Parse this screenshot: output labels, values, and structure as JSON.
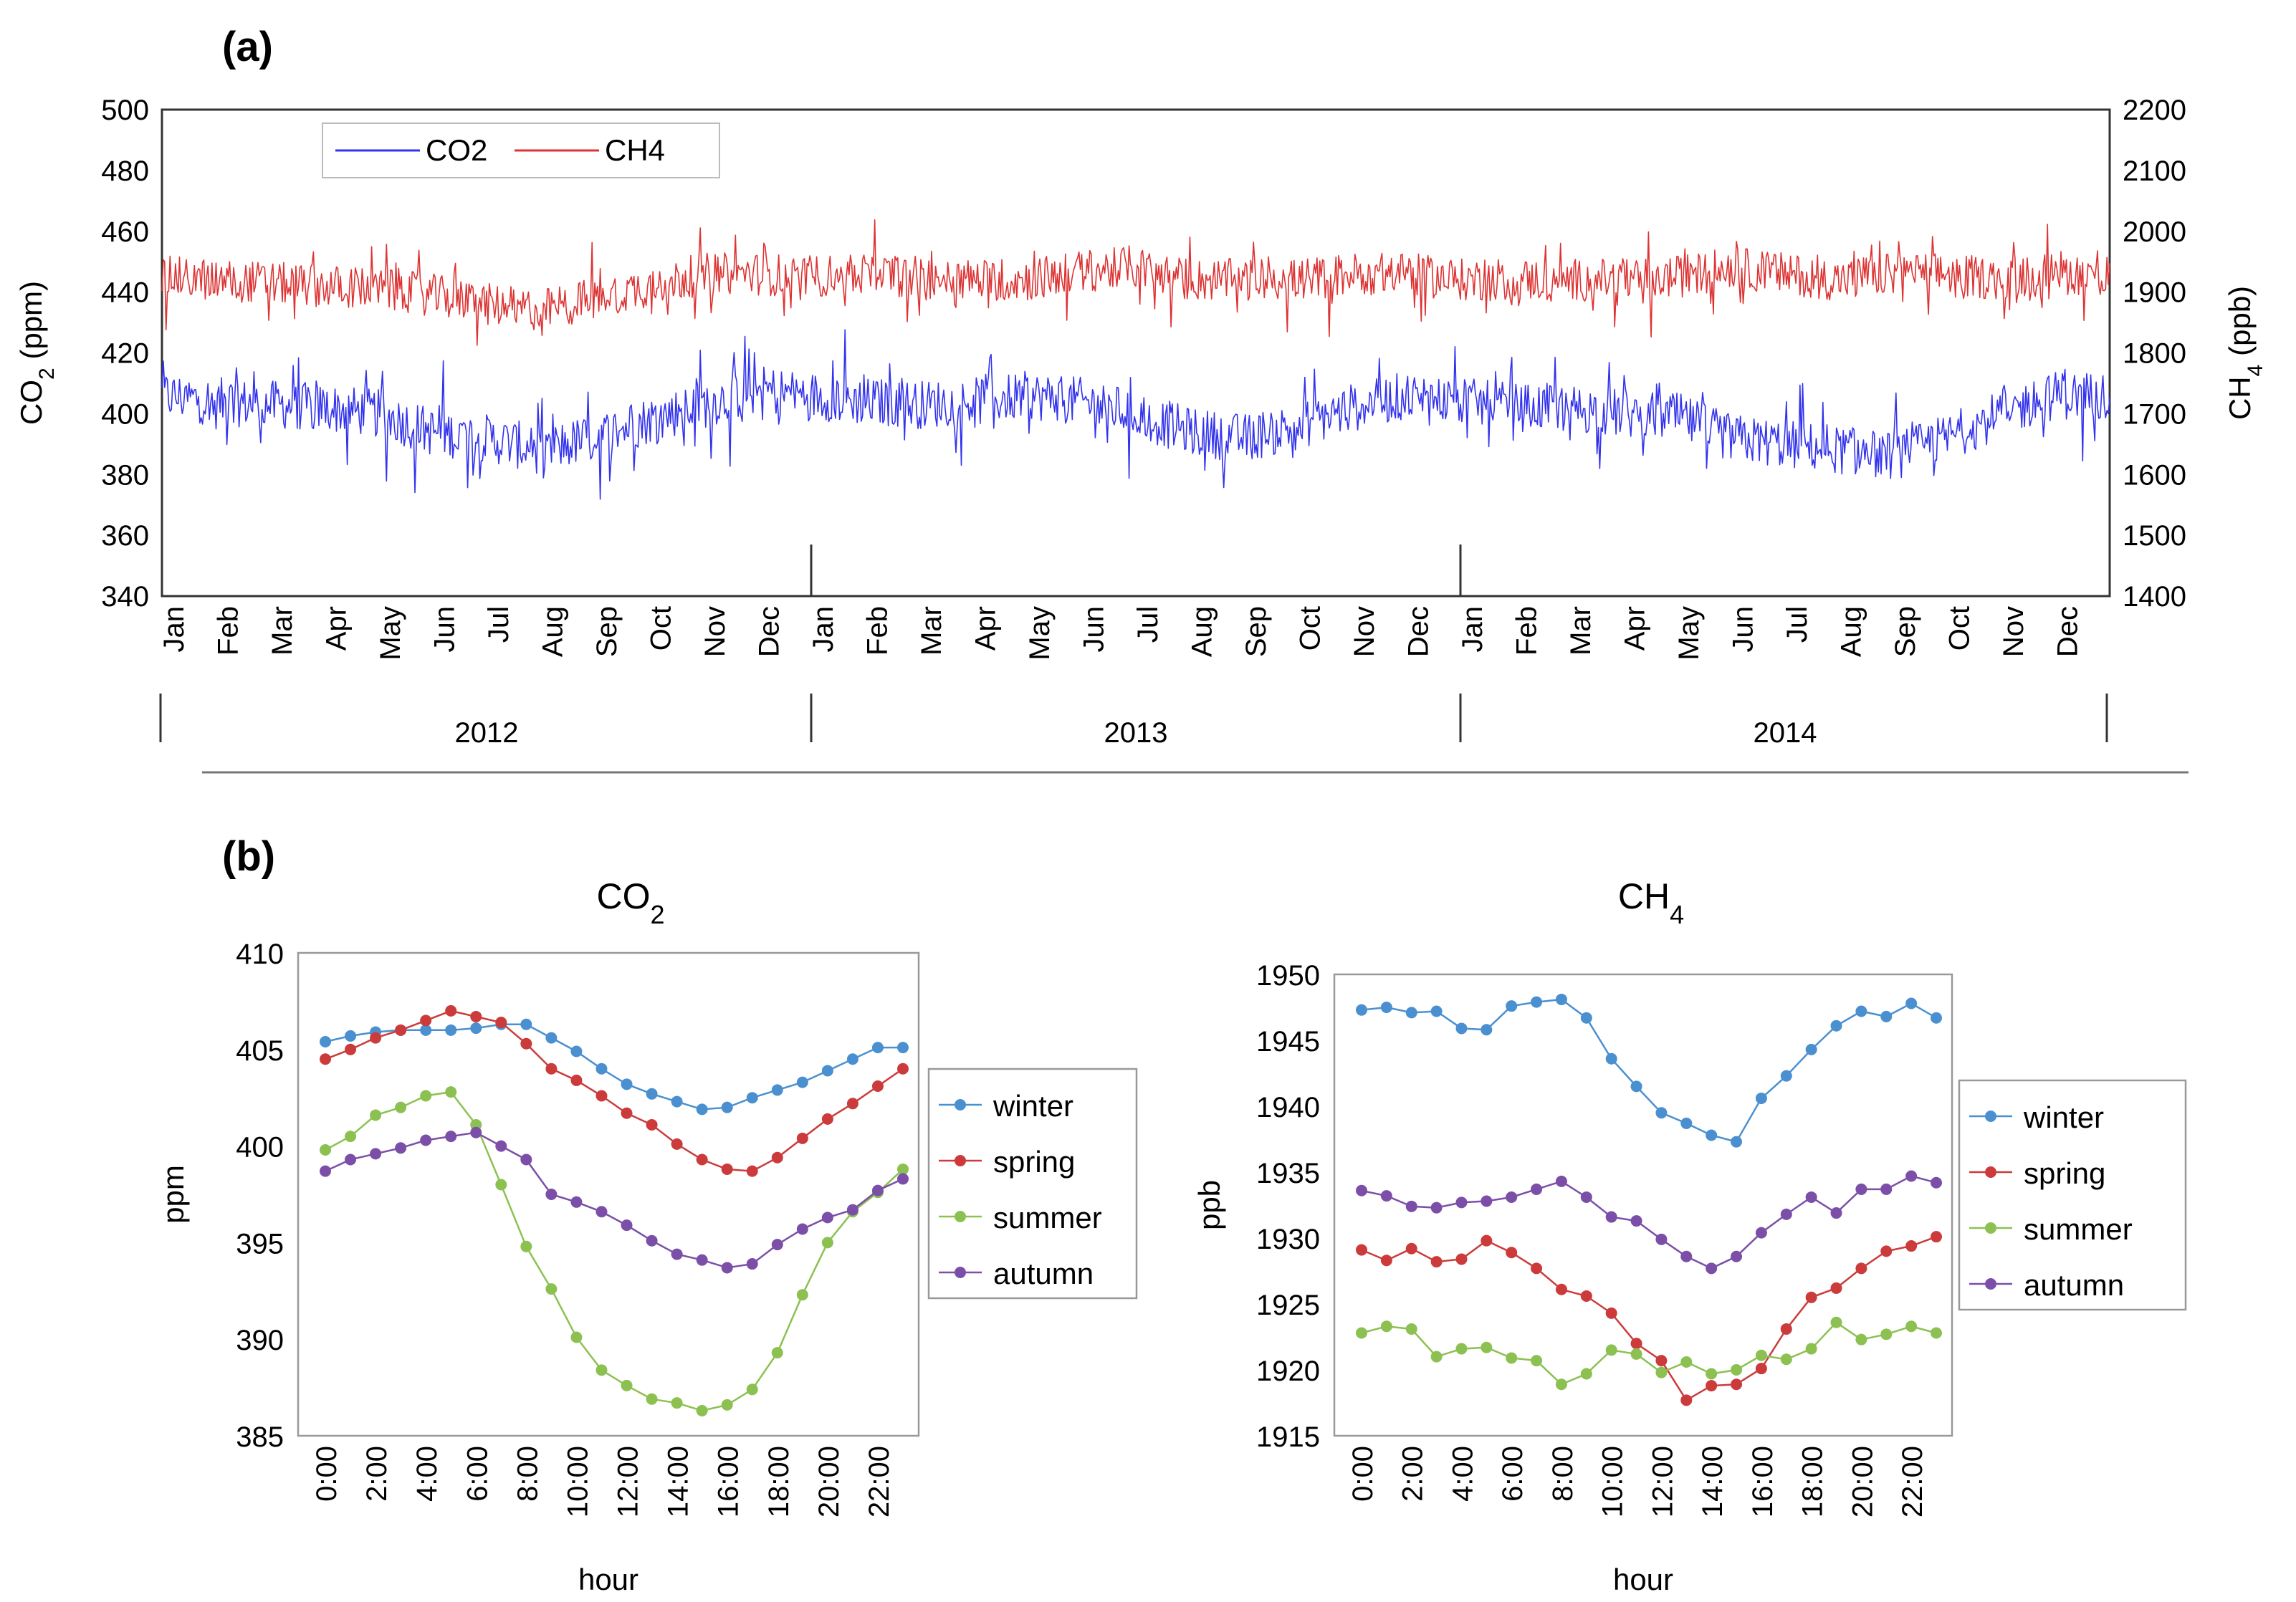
{
  "panel_a_label": "(a)",
  "panel_b_label": "(b)",
  "chart_data": [
    {
      "id": "a",
      "type": "line",
      "title": "",
      "ylabel_left_html": [
        "CO",
        "2",
        " (ppm)"
      ],
      "ylabel_right_html": [
        "CH",
        "4",
        " (ppb)"
      ],
      "ylim_left": [
        340,
        500
      ],
      "yticks_left": [
        340,
        360,
        380,
        400,
        420,
        440,
        460,
        480,
        500
      ],
      "ylim_right": [
        1400,
        2200
      ],
      "yticks_right": [
        1400,
        1500,
        1600,
        1700,
        1800,
        1900,
        2000,
        2100,
        2200
      ],
      "months": [
        "Jan",
        "Feb",
        "Mar",
        "Apr",
        "May",
        "Jun",
        "Jul",
        "Aug",
        "Sep",
        "Oct",
        "Nov",
        "Dec"
      ],
      "years": [
        "2012",
        "2013",
        "2014"
      ],
      "legend_placement": "top-left",
      "series": [
        {
          "name": "CO2",
          "axis": "left",
          "color": "#3333ee",
          "monthly_mean": [
            406,
            404,
            403,
            402,
            400,
            394,
            392,
            388,
            392,
            398,
            403,
            408,
            406,
            404,
            403,
            404,
            406,
            404,
            400,
            394,
            392,
            396,
            402,
            406,
            404,
            402,
            402,
            400,
            399,
            392,
            390,
            388,
            386,
            392,
            400,
            406
          ],
          "amplitude": 8,
          "spike_amplitude": 28
        },
        {
          "name": "CH4",
          "axis": "right",
          "color": "#dd3333",
          "monthly_mean": [
            1925,
            1920,
            1915,
            1910,
            1905,
            1895,
            1880,
            1870,
            1890,
            1910,
            1930,
            1930,
            1925,
            1930,
            1925,
            1920,
            1920,
            1935,
            1940,
            1920,
            1920,
            1920,
            1930,
            1930,
            1920,
            1920,
            1920,
            1920,
            1925,
            1940,
            1930,
            1920,
            1930,
            1930,
            1920,
            1930
          ],
          "amplitude": 35,
          "spike_amplitude": 120
        }
      ]
    },
    {
      "id": "b-co2",
      "type": "line",
      "title_html": [
        "CO",
        "2"
      ],
      "xlabel": "hour",
      "ylabel": "ppm",
      "ylim": [
        385,
        410
      ],
      "yticks": [
        385,
        390,
        395,
        400,
        405,
        410
      ],
      "x": [
        0,
        1,
        2,
        3,
        4,
        5,
        6,
        7,
        8,
        9,
        10,
        11,
        12,
        13,
        14,
        15,
        16,
        17,
        18,
        19,
        20,
        21,
        22,
        23
      ],
      "xtick_labels": [
        "0:00",
        "2:00",
        "4:00",
        "6:00",
        "8:00",
        "10:00",
        "12:00",
        "14:00",
        "16:00",
        "18:00",
        "20:00",
        "22:00"
      ],
      "legend_placement": "right",
      "series": [
        {
          "name": "winter",
          "color": "#4a90d0",
          "values": [
            405.4,
            405.7,
            405.9,
            406.0,
            406.0,
            406.0,
            406.1,
            406.3,
            406.3,
            405.6,
            404.9,
            404.0,
            403.2,
            402.7,
            402.3,
            401.9,
            402.0,
            402.5,
            402.9,
            403.3,
            403.9,
            404.5,
            405.1,
            405.1
          ]
        },
        {
          "name": "spring",
          "color": "#cc3b3b",
          "values": [
            404.5,
            405.0,
            405.6,
            406.0,
            406.5,
            407.0,
            406.7,
            406.4,
            405.3,
            404.0,
            403.4,
            402.6,
            401.7,
            401.1,
            400.1,
            399.3,
            398.8,
            398.7,
            399.4,
            400.4,
            401.4,
            402.2,
            403.1,
            404.0
          ]
        },
        {
          "name": "summer",
          "color": "#8cc152",
          "values": [
            399.8,
            400.5,
            401.6,
            402.0,
            402.6,
            402.8,
            401.1,
            398.0,
            394.8,
            392.6,
            390.1,
            388.4,
            387.6,
            386.9,
            386.7,
            386.3,
            386.6,
            387.4,
            389.3,
            392.3,
            395.0,
            396.6,
            397.6,
            398.8
          ]
        },
        {
          "name": "autumn",
          "color": "#7b4fa8",
          "values": [
            398.7,
            399.3,
            399.6,
            399.9,
            400.3,
            400.5,
            400.7,
            400.0,
            399.3,
            397.5,
            397.1,
            396.6,
            395.9,
            395.1,
            394.4,
            394.1,
            393.7,
            393.9,
            394.9,
            395.7,
            396.3,
            396.7,
            397.7,
            398.3
          ]
        }
      ]
    },
    {
      "id": "b-ch4",
      "type": "line",
      "title_html": [
        "CH",
        "4"
      ],
      "xlabel": "hour",
      "ylabel": "ppb",
      "ylim": [
        1915,
        1950
      ],
      "yticks": [
        1915,
        1920,
        1925,
        1930,
        1935,
        1940,
        1945,
        1950
      ],
      "x": [
        0,
        1,
        2,
        3,
        4,
        5,
        6,
        7,
        8,
        9,
        10,
        11,
        12,
        13,
        14,
        15,
        16,
        17,
        18,
        19,
        20,
        21,
        22,
        23
      ],
      "xtick_labels": [
        "0:00",
        "2:00",
        "4:00",
        "6:00",
        "8:00",
        "10:00",
        "12:00",
        "14:00",
        "16:00",
        "18:00",
        "20:00",
        "22:00"
      ],
      "legend_placement": "right",
      "series": [
        {
          "name": "winter",
          "color": "#4a90d0",
          "values": [
            1947.3,
            1947.5,
            1947.1,
            1947.2,
            1945.9,
            1945.8,
            1947.6,
            1947.9,
            1948.1,
            1946.7,
            1943.6,
            1941.5,
            1939.5,
            1938.7,
            1937.8,
            1937.3,
            1940.6,
            1942.3,
            1944.3,
            1946.1,
            1947.2,
            1946.8,
            1947.8,
            1946.7
          ]
        },
        {
          "name": "spring",
          "color": "#cc3b3b",
          "values": [
            1929.1,
            1928.3,
            1929.2,
            1928.2,
            1928.4,
            1929.8,
            1928.9,
            1927.7,
            1926.1,
            1925.6,
            1924.3,
            1922.0,
            1920.7,
            1917.7,
            1918.8,
            1918.9,
            1920.1,
            1923.1,
            1925.5,
            1926.2,
            1927.7,
            1929.0,
            1929.4,
            1930.1
          ]
        },
        {
          "name": "summer",
          "color": "#8cc152",
          "values": [
            1922.8,
            1923.3,
            1923.1,
            1921.0,
            1921.6,
            1921.7,
            1920.9,
            1920.7,
            1918.9,
            1919.7,
            1921.5,
            1921.2,
            1919.8,
            1920.6,
            1919.7,
            1920.0,
            1921.1,
            1920.8,
            1921.6,
            1923.6,
            1922.3,
            1922.7,
            1923.3,
            1922.8
          ]
        },
        {
          "name": "autumn",
          "color": "#7b4fa8",
          "values": [
            1933.6,
            1933.2,
            1932.4,
            1932.3,
            1932.7,
            1932.8,
            1933.1,
            1933.7,
            1934.3,
            1933.1,
            1931.6,
            1931.3,
            1929.9,
            1928.6,
            1927.7,
            1928.6,
            1930.4,
            1931.8,
            1933.1,
            1931.9,
            1933.7,
            1933.7,
            1934.7,
            1934.2
          ]
        }
      ]
    }
  ]
}
